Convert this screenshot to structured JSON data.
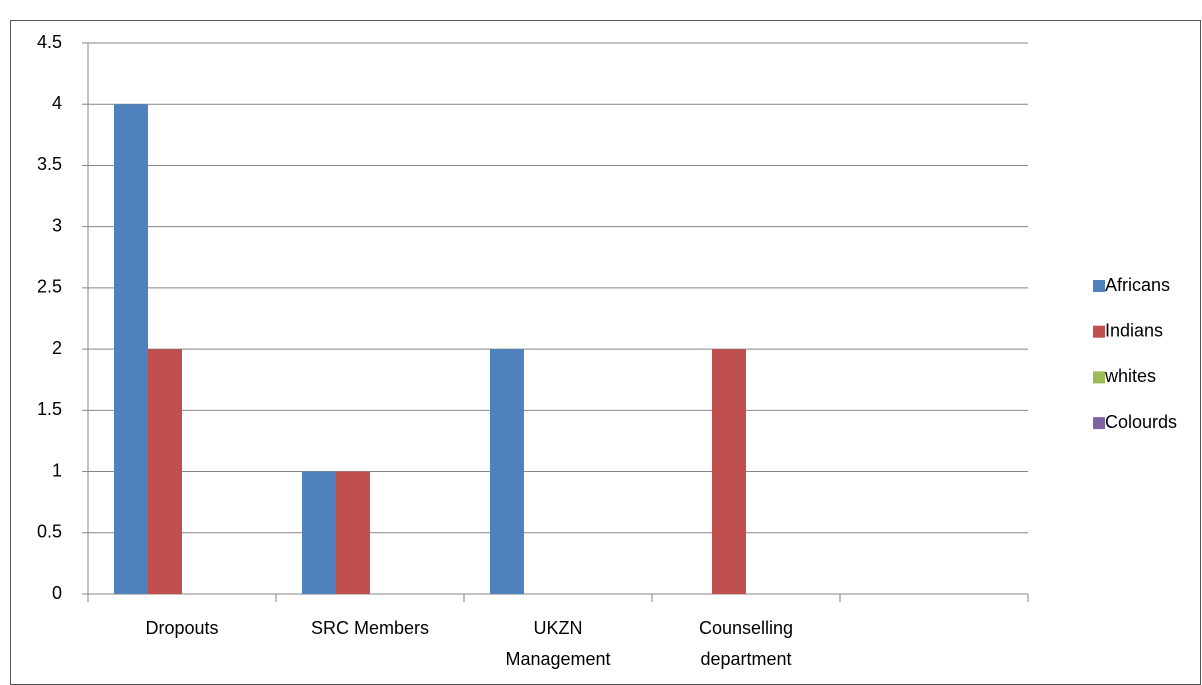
{
  "chart_data": {
    "type": "bar",
    "categories": [
      "Dropouts",
      "SRC Members",
      "UKZN Management",
      "Counselling department",
      null
    ],
    "series": [
      {
        "name": "Africans",
        "color": "#4f81bd",
        "values": [
          4,
          1,
          2,
          0,
          null
        ]
      },
      {
        "name": "Indians",
        "color": "#c0504d",
        "values": [
          2,
          1,
          0,
          2,
          null
        ]
      },
      {
        "name": "whites",
        "color": "#9bbb59",
        "values": [
          0,
          0,
          0,
          0,
          null
        ]
      },
      {
        "name": "Colourds",
        "color": "#8064a2",
        "values": [
          0,
          0,
          0,
          0,
          null
        ]
      }
    ],
    "ylim": [
      0,
      4.5
    ],
    "yticks": [
      0,
      0.5,
      1,
      1.5,
      2,
      2.5,
      3,
      3.5,
      4,
      4.5
    ],
    "grid": true,
    "legend": "right"
  }
}
